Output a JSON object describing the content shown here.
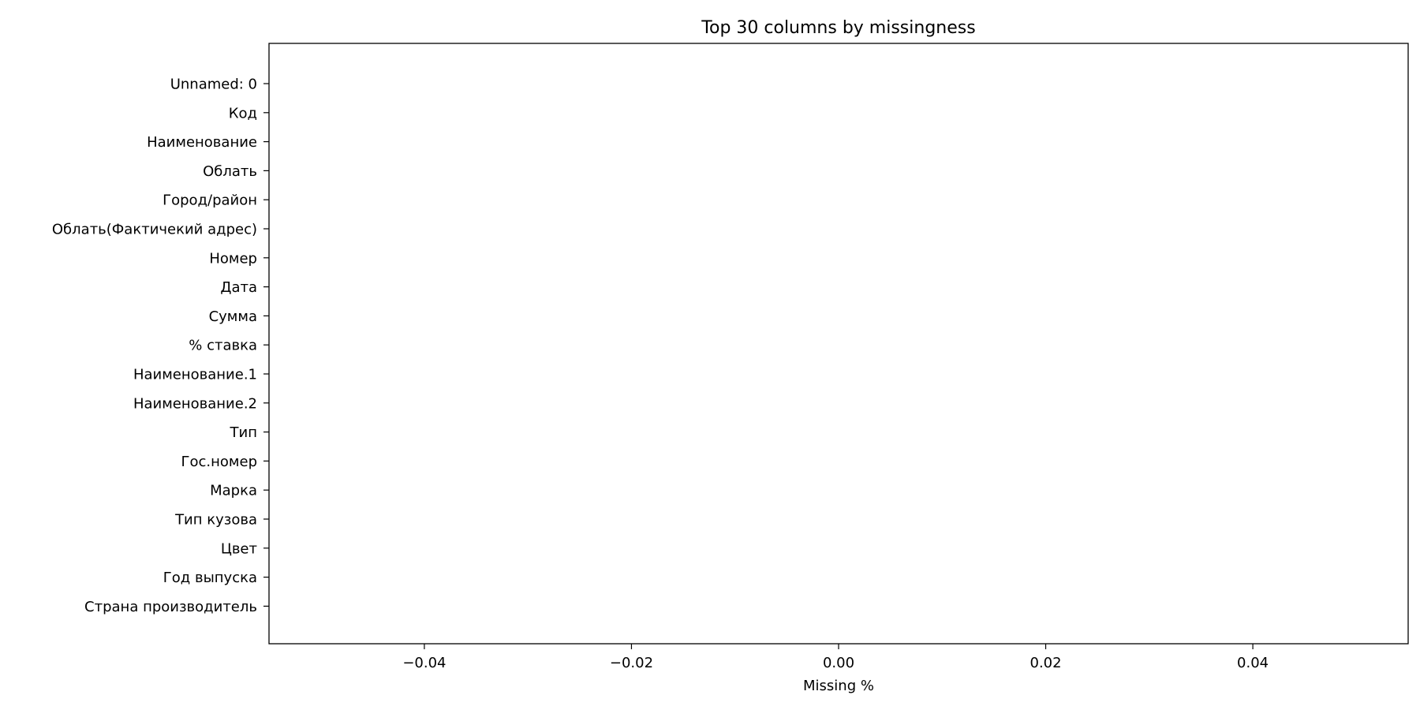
{
  "chart_data": {
    "type": "bar",
    "orientation": "horizontal",
    "title": "Top 30 columns by missingness",
    "xlabel": "Missing %",
    "ylabel": "",
    "categories": [
      "Unnamed: 0",
      "Код",
      "Наименование",
      "Облать",
      "Город/район",
      "Облать(Фактичекий адрес)",
      "Номер",
      "Дата",
      "Сумма",
      "% ставка",
      "Наименование.1",
      "Наименование.2",
      "Тип",
      "Гос.номер",
      "Марка",
      "Тип кузова",
      "Цвет",
      "Год выпуска",
      "Страна производитель"
    ],
    "values": [
      0,
      0,
      0,
      0,
      0,
      0,
      0,
      0,
      0,
      0,
      0,
      0,
      0,
      0,
      0,
      0,
      0,
      0,
      0
    ],
    "xlim": [
      -0.055,
      0.055
    ],
    "xticks": [
      -0.04,
      -0.02,
      0.0,
      0.02,
      0.04
    ],
    "xtick_labels": [
      "−0.04",
      "−0.02",
      "0.00",
      "0.02",
      "0.04"
    ],
    "grid": false,
    "colors": {
      "bar": "#1f77b4",
      "axes": "#000000",
      "background": "#ffffff"
    }
  }
}
